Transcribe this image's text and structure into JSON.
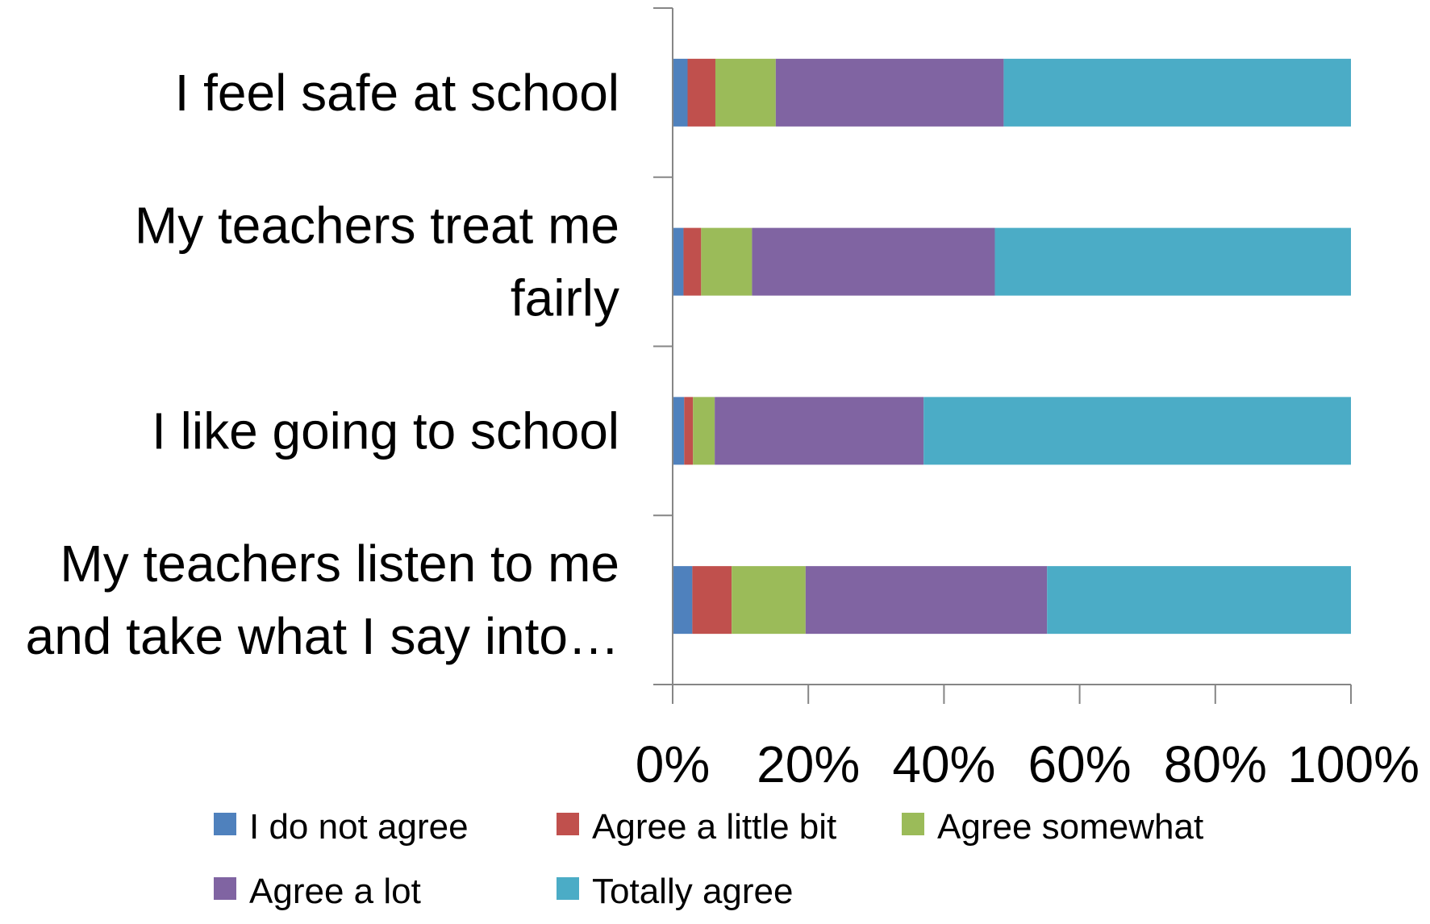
{
  "chart_data": {
    "type": "bar",
    "orientation": "horizontal",
    "stacked": "percent",
    "categories": [
      [
        "I feel safe at school"
      ],
      [
        "My teachers treat me",
        "fairly"
      ],
      [
        "I like going to school"
      ],
      [
        "My teachers listen to me",
        "and take what I say into…"
      ]
    ],
    "series": [
      {
        "name": "I do not agree",
        "color": "#4F81BD",
        "values": [
          2.2,
          1.6,
          1.7,
          2.9
        ]
      },
      {
        "name": "Agree a little bit",
        "color": "#C0504D",
        "values": [
          4.1,
          2.6,
          1.3,
          5.8
        ]
      },
      {
        "name": "Agree somewhat",
        "color": "#9BBB59",
        "values": [
          8.9,
          7.5,
          3.2,
          10.9
        ]
      },
      {
        "name": "Agree a lot",
        "color": "#8064A2",
        "values": [
          33.6,
          35.8,
          30.8,
          35.6
        ]
      },
      {
        "name": "Totally agree",
        "color": "#4BACC6",
        "values": [
          51.2,
          52.5,
          63.0,
          44.8
        ]
      }
    ],
    "x_ticks": [
      "0%",
      "20%",
      "40%",
      "60%",
      "80%",
      "100%"
    ],
    "xlim": [
      0,
      100
    ],
    "grid": false,
    "legend_position": "bottom"
  }
}
